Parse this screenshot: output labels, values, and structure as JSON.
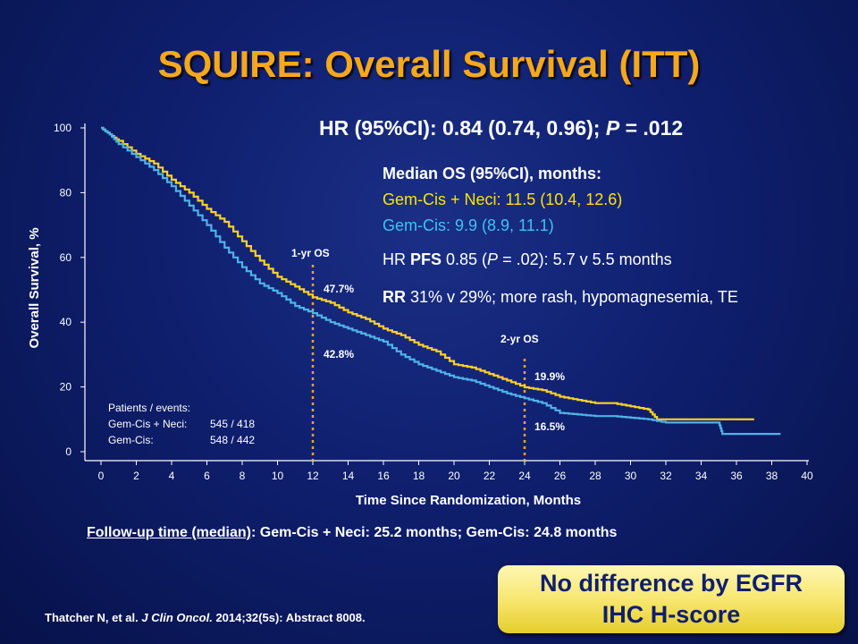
{
  "slide": {
    "title": "SQUIRE: Overall Survival (ITT)",
    "hr_prefix": "HR (95%CI): 0.84 (0.74, 0.96); ",
    "hr_p": "P",
    "hr_suffix": " = .012",
    "median_header": "Median OS (95%CI),  months:",
    "median_neci": "Gem-Cis  + Neci: 11.5 (10.4, 12.6)",
    "median_gc": "Gem-Cis:  9.9  (8.9, 11.1)",
    "pfs_a": "HR ",
    "pfs_b": "PFS",
    "pfs_c": " 0.85 (",
    "pfs_d": "P",
    "pfs_e": " = .02): 5.7 v 5.5 months",
    "rr_a": "RR",
    "rr_b": " 31% v 29%; more rash, hypomagnesemia,  TE",
    "followup_u": "Follow-up time (median)",
    "followup_rest": ": Gem-Cis + Neci: 25.2 months; Gem-Cis: 24.8 months",
    "citation_a": "Thatcher N, et al. ",
    "citation_b": "J Clin Oncol.",
    "citation_c": " 2014;32(5s): Abstract 8008.",
    "callout_line1": "No difference by EGFR",
    "callout_line2": "IHC H-score",
    "colors": {
      "title": "#f5a81c",
      "neci": "#ffe400",
      "gemcis": "#3fc3f0",
      "callout": "#f6e56a"
    }
  },
  "chart_data": {
    "type": "line",
    "xlabel": "Time Since Randomization, Months",
    "ylabel": "Overall Survival, %",
    "xlim": [
      0,
      40
    ],
    "ylim": [
      0,
      100
    ],
    "x_ticks": [
      "0",
      "2",
      "4",
      "6",
      "8",
      "10",
      "12",
      "14",
      "16",
      "18",
      "20",
      "22",
      "24",
      "26",
      "28",
      "30",
      "32",
      "34",
      "36",
      "38",
      "40"
    ],
    "y_ticks": [
      "0",
      "20",
      "40",
      "60",
      "80",
      "100"
    ],
    "grid": false,
    "series": [
      {
        "name": "Gem-Cis + Neci",
        "color": "#ffd21f",
        "x": [
          0,
          0.5,
          1,
          2,
          3,
          4,
          5,
          6,
          7,
          8,
          9,
          10,
          11,
          12,
          13,
          14,
          15,
          16,
          17,
          18,
          19,
          20,
          21,
          22,
          23,
          24,
          25,
          26,
          27,
          28,
          29,
          30,
          31,
          31.5,
          32,
          33,
          34,
          35,
          36,
          37
        ],
        "y": [
          100,
          98,
          96,
          92,
          89,
          84,
          80,
          75,
          71,
          65,
          59,
          54,
          51,
          47.7,
          46,
          43,
          41,
          38,
          36,
          33,
          31,
          27,
          26,
          24,
          22,
          19.9,
          19,
          17,
          16,
          15,
          15,
          14,
          13,
          10,
          10,
          10,
          10,
          10,
          10,
          10
        ]
      },
      {
        "name": "Gem-Cis",
        "color": "#4fb3e8",
        "x": [
          0,
          0.5,
          1,
          2,
          3,
          4,
          5,
          6,
          7,
          8,
          9,
          10,
          11,
          12,
          13,
          14,
          15,
          16,
          17,
          18,
          19,
          20,
          21,
          22,
          23,
          24,
          25,
          26,
          27,
          28,
          29,
          30,
          31,
          32,
          33,
          34,
          35,
          35.2,
          36,
          38.5
        ],
        "y": [
          100,
          98,
          95,
          91,
          87,
          82,
          76,
          70,
          63,
          57,
          52,
          49,
          45,
          42.8,
          40,
          38,
          36,
          34,
          30,
          27,
          25,
          23,
          22,
          20,
          18,
          16.5,
          15,
          12,
          11.5,
          11,
          11,
          10.5,
          10,
          9,
          9,
          9,
          9,
          5.5,
          5.5,
          5.5
        ]
      }
    ],
    "annotations": {
      "one_yr_label": "1-yr OS",
      "one_yr_neci": "47.7%",
      "one_yr_gc": "42.8%",
      "two_yr_label": "2-yr OS",
      "two_yr_neci": "19.9%",
      "two_yr_gc": "16.5%",
      "landmarks_x": [
        12,
        24
      ]
    },
    "patients_box": {
      "header": "Patients / events:",
      "row1_name": "Gem-Cis + Neci:",
      "row1_value": "545 / 418",
      "row2_name": "Gem-Cis:",
      "row2_value": "548 / 442"
    }
  }
}
